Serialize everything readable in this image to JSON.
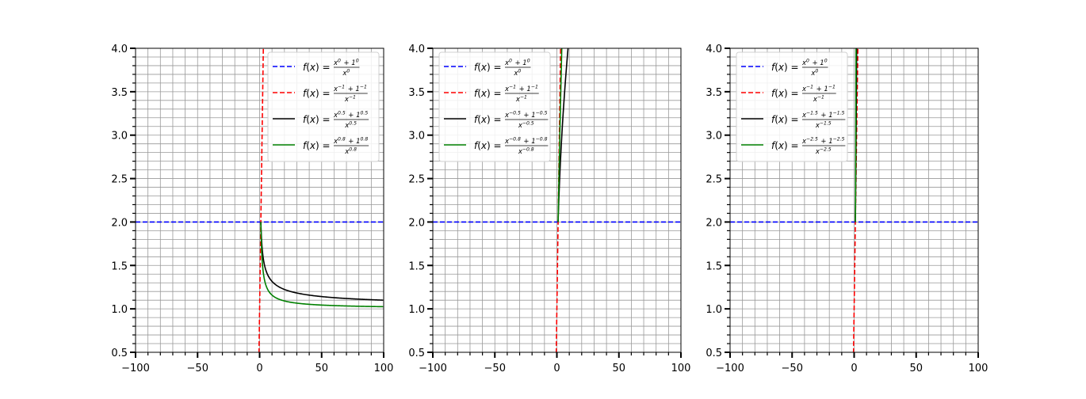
{
  "chart_data": [
    {
      "type": "line",
      "xlim": [
        -100,
        100
      ],
      "ylim": [
        0.5,
        4.0
      ],
      "x_ticks": [
        -100,
        -50,
        0,
        50,
        100
      ],
      "x_tick_labels": [
        "−100",
        "−50",
        "0",
        "50",
        "100"
      ],
      "y_ticks": [
        0.5,
        1.0,
        1.5,
        2.0,
        2.5,
        3.0,
        3.5,
        4.0
      ],
      "y_tick_labels": [
        "0.5",
        "1.0",
        "1.5",
        "2.0",
        "2.5",
        "3.0",
        "3.5",
        "4.0"
      ],
      "grid": true,
      "legend_position": "upper-right",
      "series": [
        {
          "name": "f(x) = (x^0 + 1^0) / x^0",
          "exponent": 0,
          "color": "#0000ff",
          "style": "dashed"
        },
        {
          "name": "f(x) = (x^-1 + 1^-1) / x^-1",
          "exponent": -1,
          "color": "#ff0000",
          "style": "dashed"
        },
        {
          "name": "f(x) = (x^0.5 + 1^0.5) / x^0.5",
          "exponent": 0.5,
          "color": "#000000",
          "style": "solid"
        },
        {
          "name": "f(x) = (x^0.8 + 1^0.8) / x^0.8",
          "exponent": 0.8,
          "color": "#008000",
          "style": "solid"
        }
      ],
      "legend": [
        {
          "num": "x^0 + 1^0",
          "den": "x^0",
          "color": "#0000ff",
          "style": "dashed"
        },
        {
          "num": "x^-1 + 1^-1",
          "den": "x^-1",
          "color": "#ff0000",
          "style": "dashed"
        },
        {
          "num": "x^0.5 + 1^0.5",
          "den": "x^0.5",
          "color": "#000000",
          "style": "solid"
        },
        {
          "num": "x^0.8 + 1^0.8",
          "den": "x^0.8",
          "color": "#008000",
          "style": "solid"
        }
      ]
    },
    {
      "type": "line",
      "xlim": [
        -100,
        100
      ],
      "ylim": [
        0.5,
        4.0
      ],
      "x_ticks": [
        -100,
        -50,
        0,
        50,
        100
      ],
      "x_tick_labels": [
        "−100",
        "−50",
        "0",
        "50",
        "100"
      ],
      "y_ticks": [
        0.5,
        1.0,
        1.5,
        2.0,
        2.5,
        3.0,
        3.5,
        4.0
      ],
      "y_tick_labels": [
        "0.5",
        "1.0",
        "1.5",
        "2.0",
        "2.5",
        "3.0",
        "3.5",
        "4.0"
      ],
      "grid": true,
      "legend_position": "upper-left",
      "series": [
        {
          "name": "f(x) = (x^0 + 1^0) / x^0",
          "exponent": 0,
          "color": "#0000ff",
          "style": "dashed"
        },
        {
          "name": "f(x) = (x^-1 + 1^-1) / x^-1",
          "exponent": -1,
          "color": "#ff0000",
          "style": "dashed"
        },
        {
          "name": "f(x) = (x^-0.5 + 1^-0.5) / x^-0.5",
          "exponent": -0.5,
          "color": "#000000",
          "style": "solid"
        },
        {
          "name": "f(x) = (x^-0.8 + 1^-0.8) / x^-0.8",
          "exponent": -0.8,
          "color": "#008000",
          "style": "solid"
        }
      ],
      "legend": [
        {
          "num": "x^0 + 1^0",
          "den": "x^0",
          "color": "#0000ff",
          "style": "dashed"
        },
        {
          "num": "x^-1 + 1^-1",
          "den": "x^-1",
          "color": "#ff0000",
          "style": "dashed"
        },
        {
          "num": "x^-0.5 + 1^-0.5",
          "den": "x^-0.5",
          "color": "#000000",
          "style": "solid"
        },
        {
          "num": "x^-0.8 + 1^-0.8",
          "den": "x^-0.8",
          "color": "#008000",
          "style": "solid"
        }
      ]
    },
    {
      "type": "line",
      "xlim": [
        -100,
        100
      ],
      "ylim": [
        0.5,
        4.0
      ],
      "x_ticks": [
        -100,
        -50,
        0,
        50,
        100
      ],
      "x_tick_labels": [
        "−100",
        "−50",
        "0",
        "50",
        "100"
      ],
      "y_ticks": [
        0.5,
        1.0,
        1.5,
        2.0,
        2.5,
        3.0,
        3.5,
        4.0
      ],
      "y_tick_labels": [
        "0.5",
        "1.0",
        "1.5",
        "2.0",
        "2.5",
        "3.0",
        "3.5",
        "4.0"
      ],
      "grid": true,
      "legend_position": "upper-left",
      "series": [
        {
          "name": "f(x) = (x^0 + 1^0) / x^0",
          "exponent": 0,
          "color": "#0000ff",
          "style": "dashed"
        },
        {
          "name": "f(x) = (x^-1 + 1^-1) / x^-1",
          "exponent": -1,
          "color": "#ff0000",
          "style": "dashed"
        },
        {
          "name": "f(x) = (x^-1.5 + 1^-1.5) / x^-1.5",
          "exponent": -1.5,
          "color": "#000000",
          "style": "solid"
        },
        {
          "name": "f(x) = (x^-2.5 + 1^-2.5) / x^-2.5",
          "exponent": -2.5,
          "color": "#008000",
          "style": "solid"
        }
      ],
      "legend": [
        {
          "num": "x^0 + 1^0",
          "den": "x^0",
          "color": "#0000ff",
          "style": "dashed"
        },
        {
          "num": "x^-1 + 1^-1",
          "den": "x^-1",
          "color": "#ff0000",
          "style": "dashed"
        },
        {
          "num": "x^-1.5 + 1^-1.5",
          "den": "x^-1.5",
          "color": "#000000",
          "style": "solid"
        },
        {
          "num": "x^-2.5 + 1^-2.5",
          "den": "x^-2.5",
          "color": "#008000",
          "style": "solid"
        }
      ]
    }
  ]
}
